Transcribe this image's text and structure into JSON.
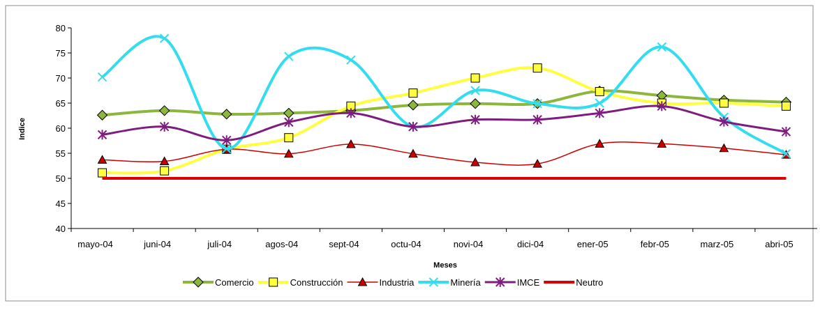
{
  "chart_data": {
    "type": "line",
    "x_label": "Meses",
    "y_label": "Indice",
    "categories": [
      "mayo-04",
      "juni-04",
      "juli-04",
      "agos-04",
      "sept-04",
      "octu-04",
      "novi-04",
      "dici-04",
      "ener-05",
      "febr-05",
      "marz-05",
      "abri-05"
    ],
    "ylim": [
      40,
      80
    ],
    "yticks": [
      40,
      45,
      50,
      55,
      60,
      65,
      70,
      75,
      80
    ],
    "series": [
      {
        "name": "Comercio",
        "color": "#8db63c",
        "marker": "diamond",
        "marker_color": "#8db63c",
        "width": 4,
        "values": [
          62.6,
          63.5,
          62.8,
          63.0,
          63.5,
          64.6,
          64.9,
          64.9,
          67.4,
          66.5,
          65.6,
          65.2
        ]
      },
      {
        "name": "Construcción",
        "color": "#ffff40",
        "marker": "square",
        "marker_color": "#ffff40",
        "width": 4,
        "values": [
          51.1,
          51.5,
          55.8,
          58.1,
          64.4,
          67.0,
          70.0,
          72.0,
          67.3,
          65.0,
          65.0,
          64.4
        ]
      },
      {
        "name": "Industria",
        "color": "#cc0000",
        "marker": "triangle",
        "marker_color": "#cc0000",
        "width": 1.5,
        "values": [
          53.7,
          53.4,
          55.8,
          54.9,
          56.8,
          54.9,
          53.2,
          52.9,
          56.9,
          56.9,
          56.0,
          54.7
        ]
      },
      {
        "name": "Minería",
        "color": "#33ddee",
        "marker": "x",
        "marker_color": "#33ddee",
        "width": 4,
        "values": [
          70.2,
          77.9,
          55.9,
          74.3,
          73.6,
          60.3,
          67.5,
          64.9,
          65.0,
          76.2,
          62.2,
          54.9
        ]
      },
      {
        "name": "IMCE",
        "color": "#7f1d7f",
        "marker": "star",
        "marker_color": "#7f1d7f",
        "width": 3,
        "values": [
          58.7,
          60.3,
          57.6,
          61.2,
          63.0,
          60.3,
          61.7,
          61.7,
          63.0,
          64.4,
          61.3,
          59.3
        ]
      },
      {
        "name": "Neutro",
        "color": "#dd0000",
        "marker": "none",
        "marker_color": "#dd0000",
        "width": 4,
        "values": [
          50,
          50,
          50,
          50,
          50,
          50,
          50,
          50,
          50,
          50,
          50,
          50
        ]
      }
    ]
  }
}
